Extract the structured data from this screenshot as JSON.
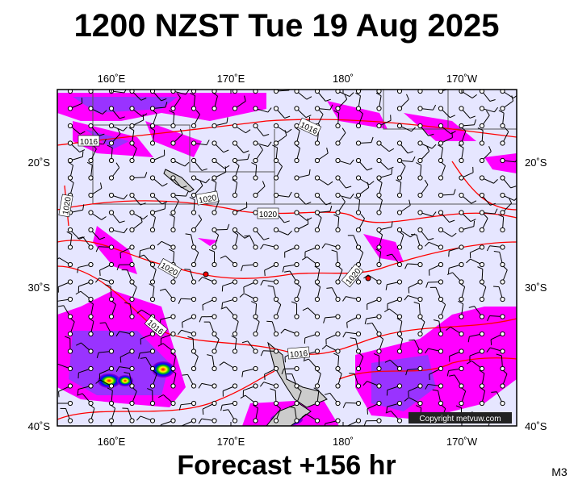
{
  "header": {
    "title": "1200 NZST Tue 19 Aug 2025"
  },
  "map": {
    "lon_labels": [
      "160˚E",
      "170˚E",
      "180˚",
      "170˚W"
    ],
    "lat_labels": [
      "20˚S",
      "30˚S",
      "40˚S"
    ],
    "isobar_labels": [
      "1016",
      "1016",
      "1020",
      "1020",
      "1020",
      "1020",
      "1020",
      "1016",
      "1016"
    ],
    "copyright": "Copyright metvuw.com"
  },
  "footer": {
    "forecast": "Forecast +156 hr",
    "model": "M3"
  }
}
